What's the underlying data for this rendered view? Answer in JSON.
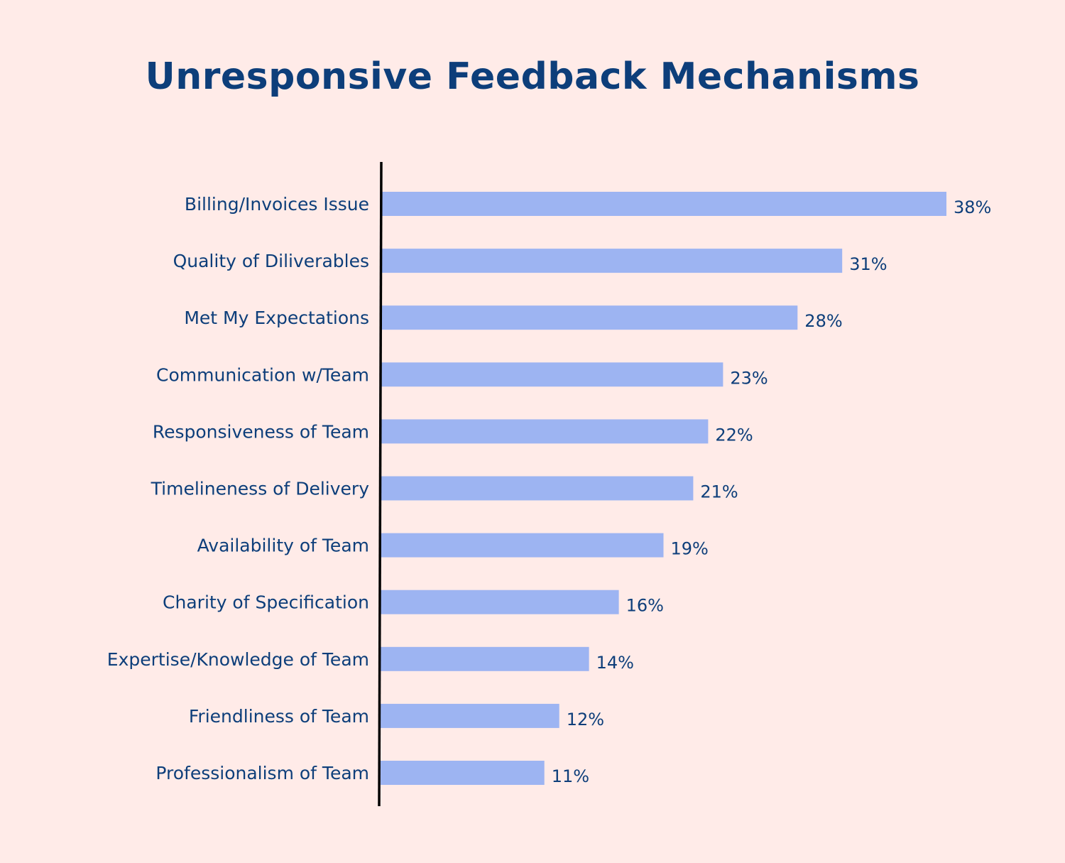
{
  "chart_data": {
    "type": "bar",
    "orientation": "horizontal",
    "title": "Unresponsive Feedback Mechanisms",
    "categories": [
      "Billing/Invoices Issue",
      "Quality of Diliverables",
      "Met My Expectations",
      "Communication w/Team",
      "Responsiveness of Team",
      "Timelineness of Delivery",
      "Availability of Team",
      "Charity of Specification",
      "Expertise/Knowledge of Team",
      "Friendliness of Team",
      "Professionalism of Team"
    ],
    "values": [
      38,
      31,
      28,
      23,
      22,
      21,
      19,
      16,
      14,
      12,
      11
    ],
    "value_labels": [
      "38%",
      "31%",
      "28%",
      "23%",
      "22%",
      "21%",
      "19%",
      "16%",
      "14%",
      "12%",
      "11%"
    ],
    "unit": "%",
    "xlim": [
      0,
      38
    ],
    "grid": false,
    "colors": {
      "bar": "#9db4f2",
      "text": "#0d3e7a",
      "axis": "#000000",
      "background": "#ffebe8"
    }
  }
}
